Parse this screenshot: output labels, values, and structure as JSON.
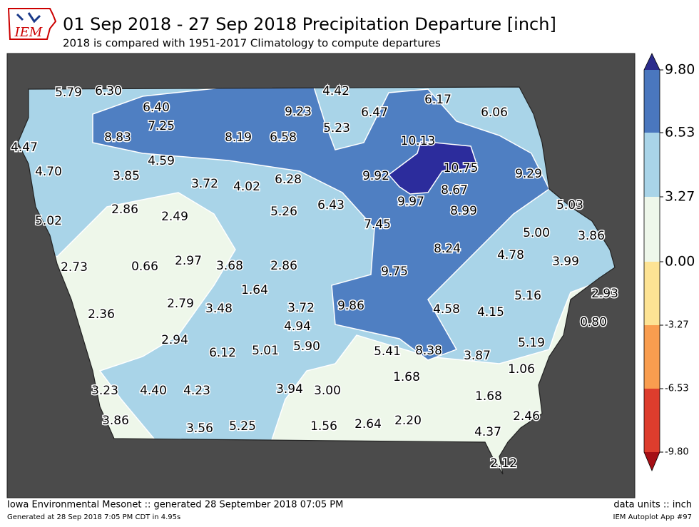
{
  "header": {
    "logo": "IEM",
    "title": "01 Sep 2018 - 27 Sep 2018 Precipitation Departure [inch]",
    "subtitle": "2018 is compared with 1951-2017 Climatology to compute departures"
  },
  "colorbar": {
    "labels": [
      "9.80",
      "6.53",
      "3.27",
      "0.00",
      "-3.27",
      "-6.53",
      "-9.80"
    ]
  },
  "stations": [
    "5.79",
    "6.30",
    "4.42",
    "6.17",
    "6.40",
    "9.23",
    "6.47",
    "6.06",
    "7.25",
    "5.23",
    "8.83",
    "8.19",
    "6.58",
    "10.13",
    "4.47",
    "4.59",
    "10.75",
    "4.70",
    "3.85",
    "6.28",
    "9.92",
    "9.29",
    "3.72",
    "4.02",
    "8.67",
    "9.97",
    "6.43",
    "8.99",
    "5.03",
    "2.86",
    "2.49",
    "5.26",
    "5.02",
    "7.45",
    "5.00",
    "3.86",
    "8.24",
    "4.78",
    "2.73",
    "0.66",
    "2.97",
    "3.68",
    "2.86",
    "9.75",
    "3.99",
    "1.64",
    "5.16",
    "2.93",
    "2.79",
    "3.48",
    "3.72",
    "9.86",
    "4.58",
    "4.15",
    "2.36",
    "0.80",
    "4.94",
    "2.94",
    "6.12",
    "5.01",
    "5.90",
    "5.41",
    "8.38",
    "3.87",
    "5.19",
    "1.06",
    "1.68",
    "3.23",
    "4.40",
    "4.23",
    "3.94",
    "3.00",
    "1.68",
    "2.46",
    "3.86",
    "1.56",
    "2.64",
    "2.20",
    "3.56",
    "5.25",
    "4.37",
    "2.12"
  ],
  "footer": {
    "left": "Iowa Environmental Mesonet :: generated 28 September 2018 07:05 PM",
    "left_small": "Generated at 28 Sep 2018 7:05 PM CDT in 4.95s",
    "right": "data units :: inch",
    "right_small": "IEM Autoplot App #97"
  }
}
